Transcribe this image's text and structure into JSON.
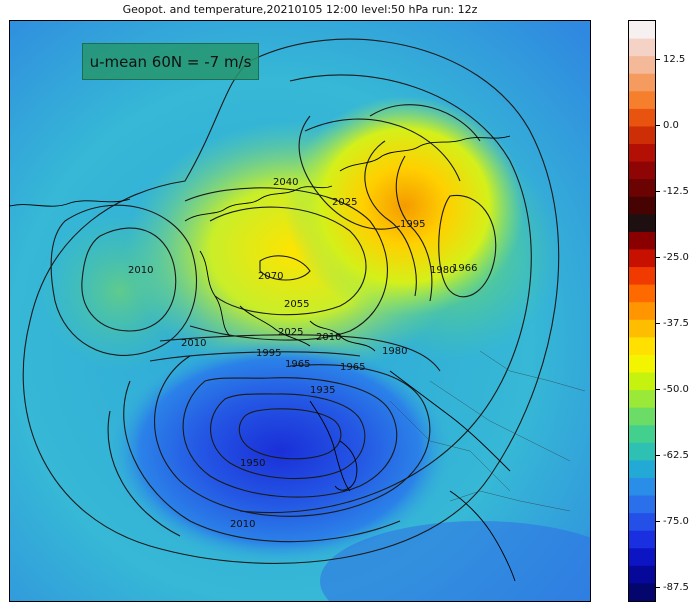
{
  "title": "Geopot. and temperature,20210105 12:00 level:50 hPa run: 12z",
  "info_box": "u-mean 60N = -7 m/s",
  "contour_labels": [
    "2040",
    "2025",
    "1995",
    "1980",
    "1966",
    "2010",
    "2070",
    "2055",
    "2025",
    "2010",
    "1995",
    "1965",
    "1980",
    "1965",
    "1935",
    "1950",
    "2010",
    "2010"
  ],
  "colorbar": {
    "tick_labels": [
      "12.5",
      "0.0",
      "-12.5",
      "-25.0",
      "-37.5",
      "-50.0",
      "-62.5",
      "-75.0",
      "-87.5"
    ],
    "colors": [
      "#f7f0f0",
      "#f4d3c6",
      "#f4b998",
      "#f59b5f",
      "#f67f2d",
      "#e8540f",
      "#ce2e05",
      "#b30f04",
      "#8f0505",
      "#6b0303",
      "#470202",
      "#1e1010",
      "#8a0000",
      "#c81000",
      "#f03a00",
      "#ff6a00",
      "#ff9500",
      "#ffbd00",
      "#ffe000",
      "#f3f500",
      "#c6f20f",
      "#9ae838",
      "#6bdd66",
      "#43d08f",
      "#2fc0b4",
      "#23a9d6",
      "#2a8ee8",
      "#2a70ea",
      "#2450e8",
      "#1a2fe0",
      "#0c14c4",
      "#06089a",
      "#04066e"
    ]
  }
}
